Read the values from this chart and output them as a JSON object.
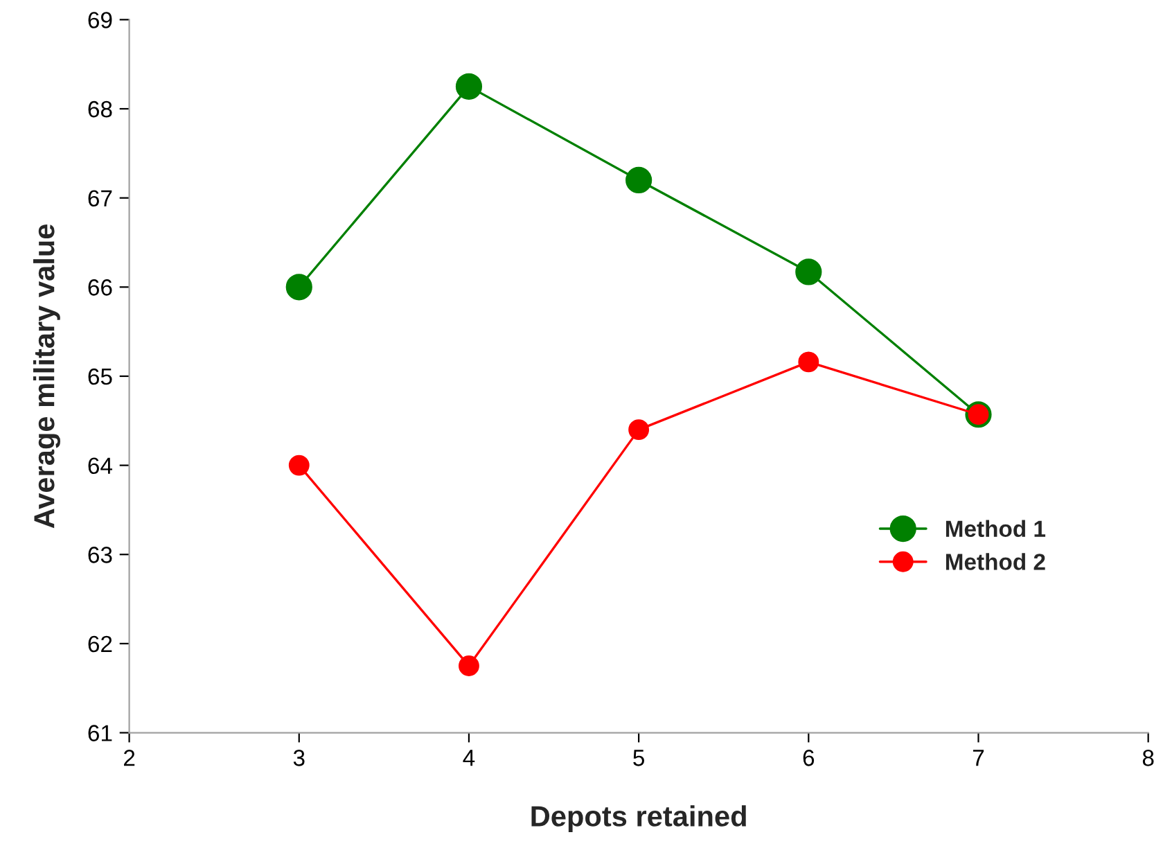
{
  "chart_data": {
    "type": "line",
    "xlabel": "Depots retained",
    "ylabel": "Average military value",
    "x": [
      3,
      4,
      5,
      6,
      7
    ],
    "series": [
      {
        "name": "Method 1",
        "color": "#008000",
        "values": [
          66.0,
          68.25,
          67.2,
          66.17,
          64.57
        ]
      },
      {
        "name": "Method 2",
        "color": "#ff0000",
        "values": [
          64.0,
          61.75,
          64.4,
          65.16,
          64.57
        ]
      }
    ],
    "xlim": [
      2,
      8
    ],
    "xticks": [
      2,
      3,
      4,
      5,
      6,
      7,
      8
    ],
    "ylim": [
      61,
      69
    ],
    "yticks": [
      61,
      62,
      63,
      64,
      65,
      66,
      67,
      68,
      69
    ],
    "grid": false,
    "legend": "center right",
    "marker": "circle",
    "line_style": "solid"
  }
}
